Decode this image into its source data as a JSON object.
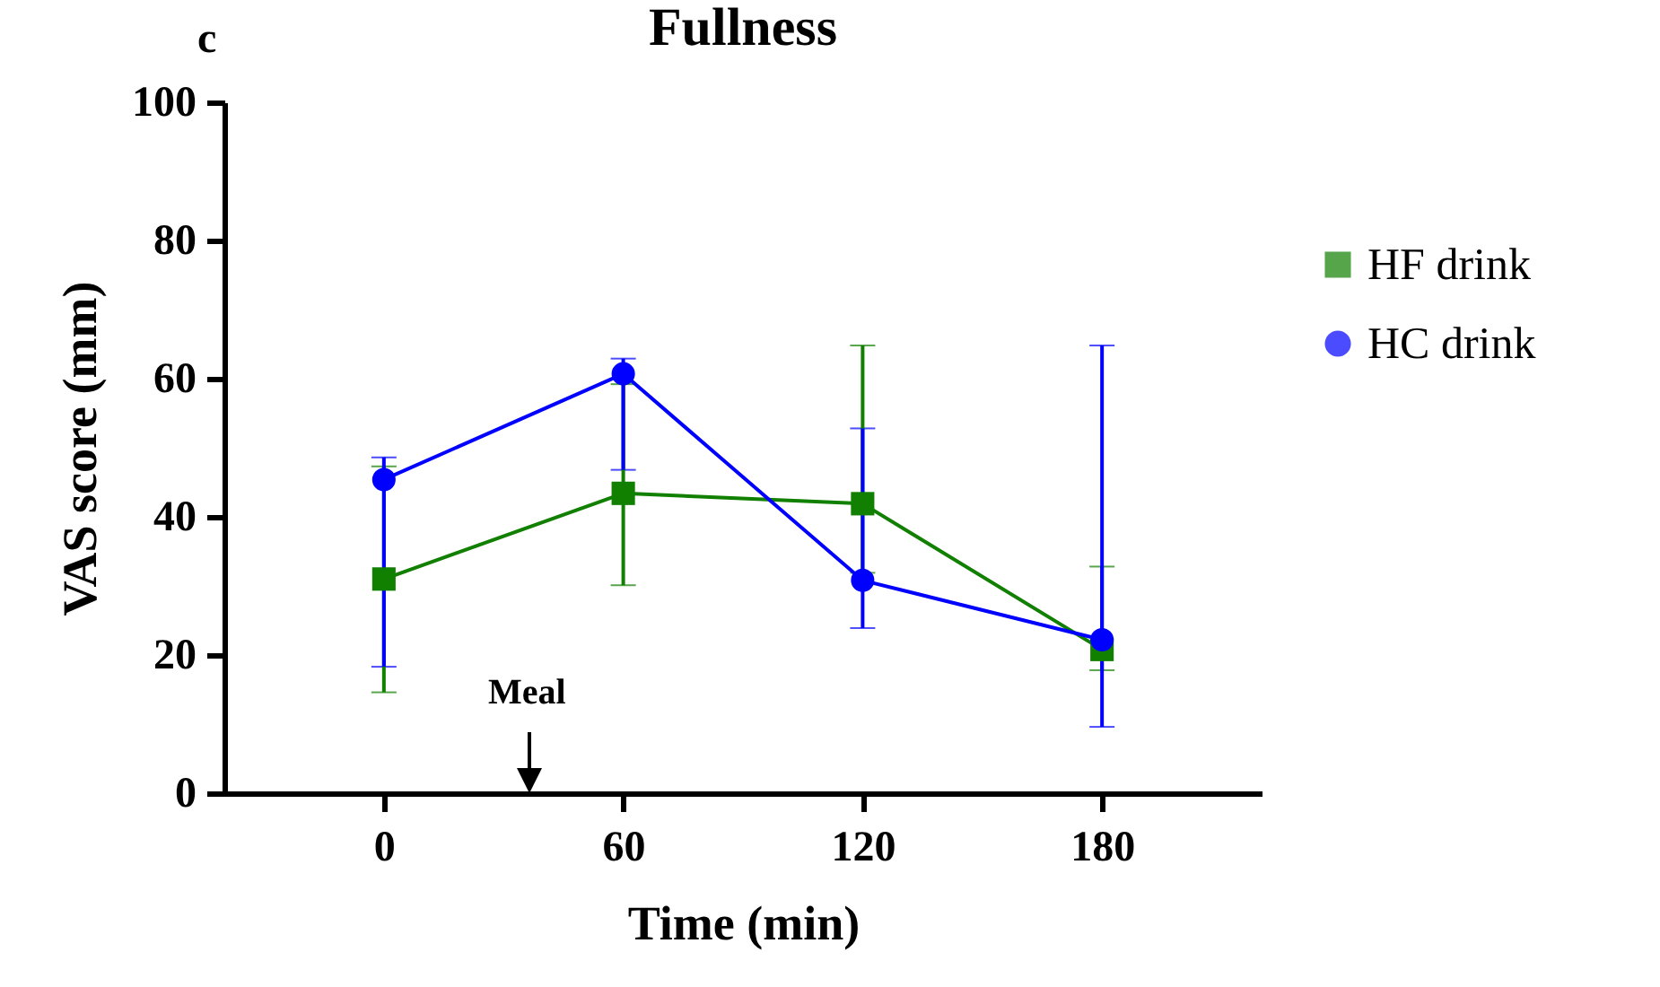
{
  "chart_data": {
    "type": "line",
    "title": "Fullness",
    "xlabel": "Time (min)",
    "ylabel": "VAS score (mm)",
    "x": [
      0,
      60,
      120,
      180
    ],
    "series": [
      {
        "name": "HF drink",
        "color": "#117f00",
        "marker": "square",
        "values": [
          31.0,
          43.4,
          41.9,
          20.8
        ],
        "errors": [
          [
            14.6,
            47.3
          ],
          [
            30.1,
            59.2
          ],
          [
            31.9,
            64.8
          ],
          [
            17.8,
            32.8
          ]
        ]
      },
      {
        "name": "HC drink",
        "color": "#0000ff",
        "marker": "circle",
        "values": [
          45.4,
          60.7,
          30.8,
          22.2
        ],
        "errors": [
          [
            18.3,
            48.6
          ],
          [
            46.8,
            62.9
          ],
          [
            23.9,
            52.8
          ],
          [
            9.6,
            64.8
          ]
        ]
      }
    ],
    "xlim": [
      -40,
      220
    ],
    "xticks": [
      0,
      60,
      120,
      180
    ],
    "ylim": [
      0,
      100
    ],
    "yticks": [
      0,
      20,
      40,
      60,
      80,
      100
    ],
    "grid": false,
    "legend": "right",
    "line_style": "solid",
    "annotations": [
      "c",
      "Meal"
    ]
  }
}
